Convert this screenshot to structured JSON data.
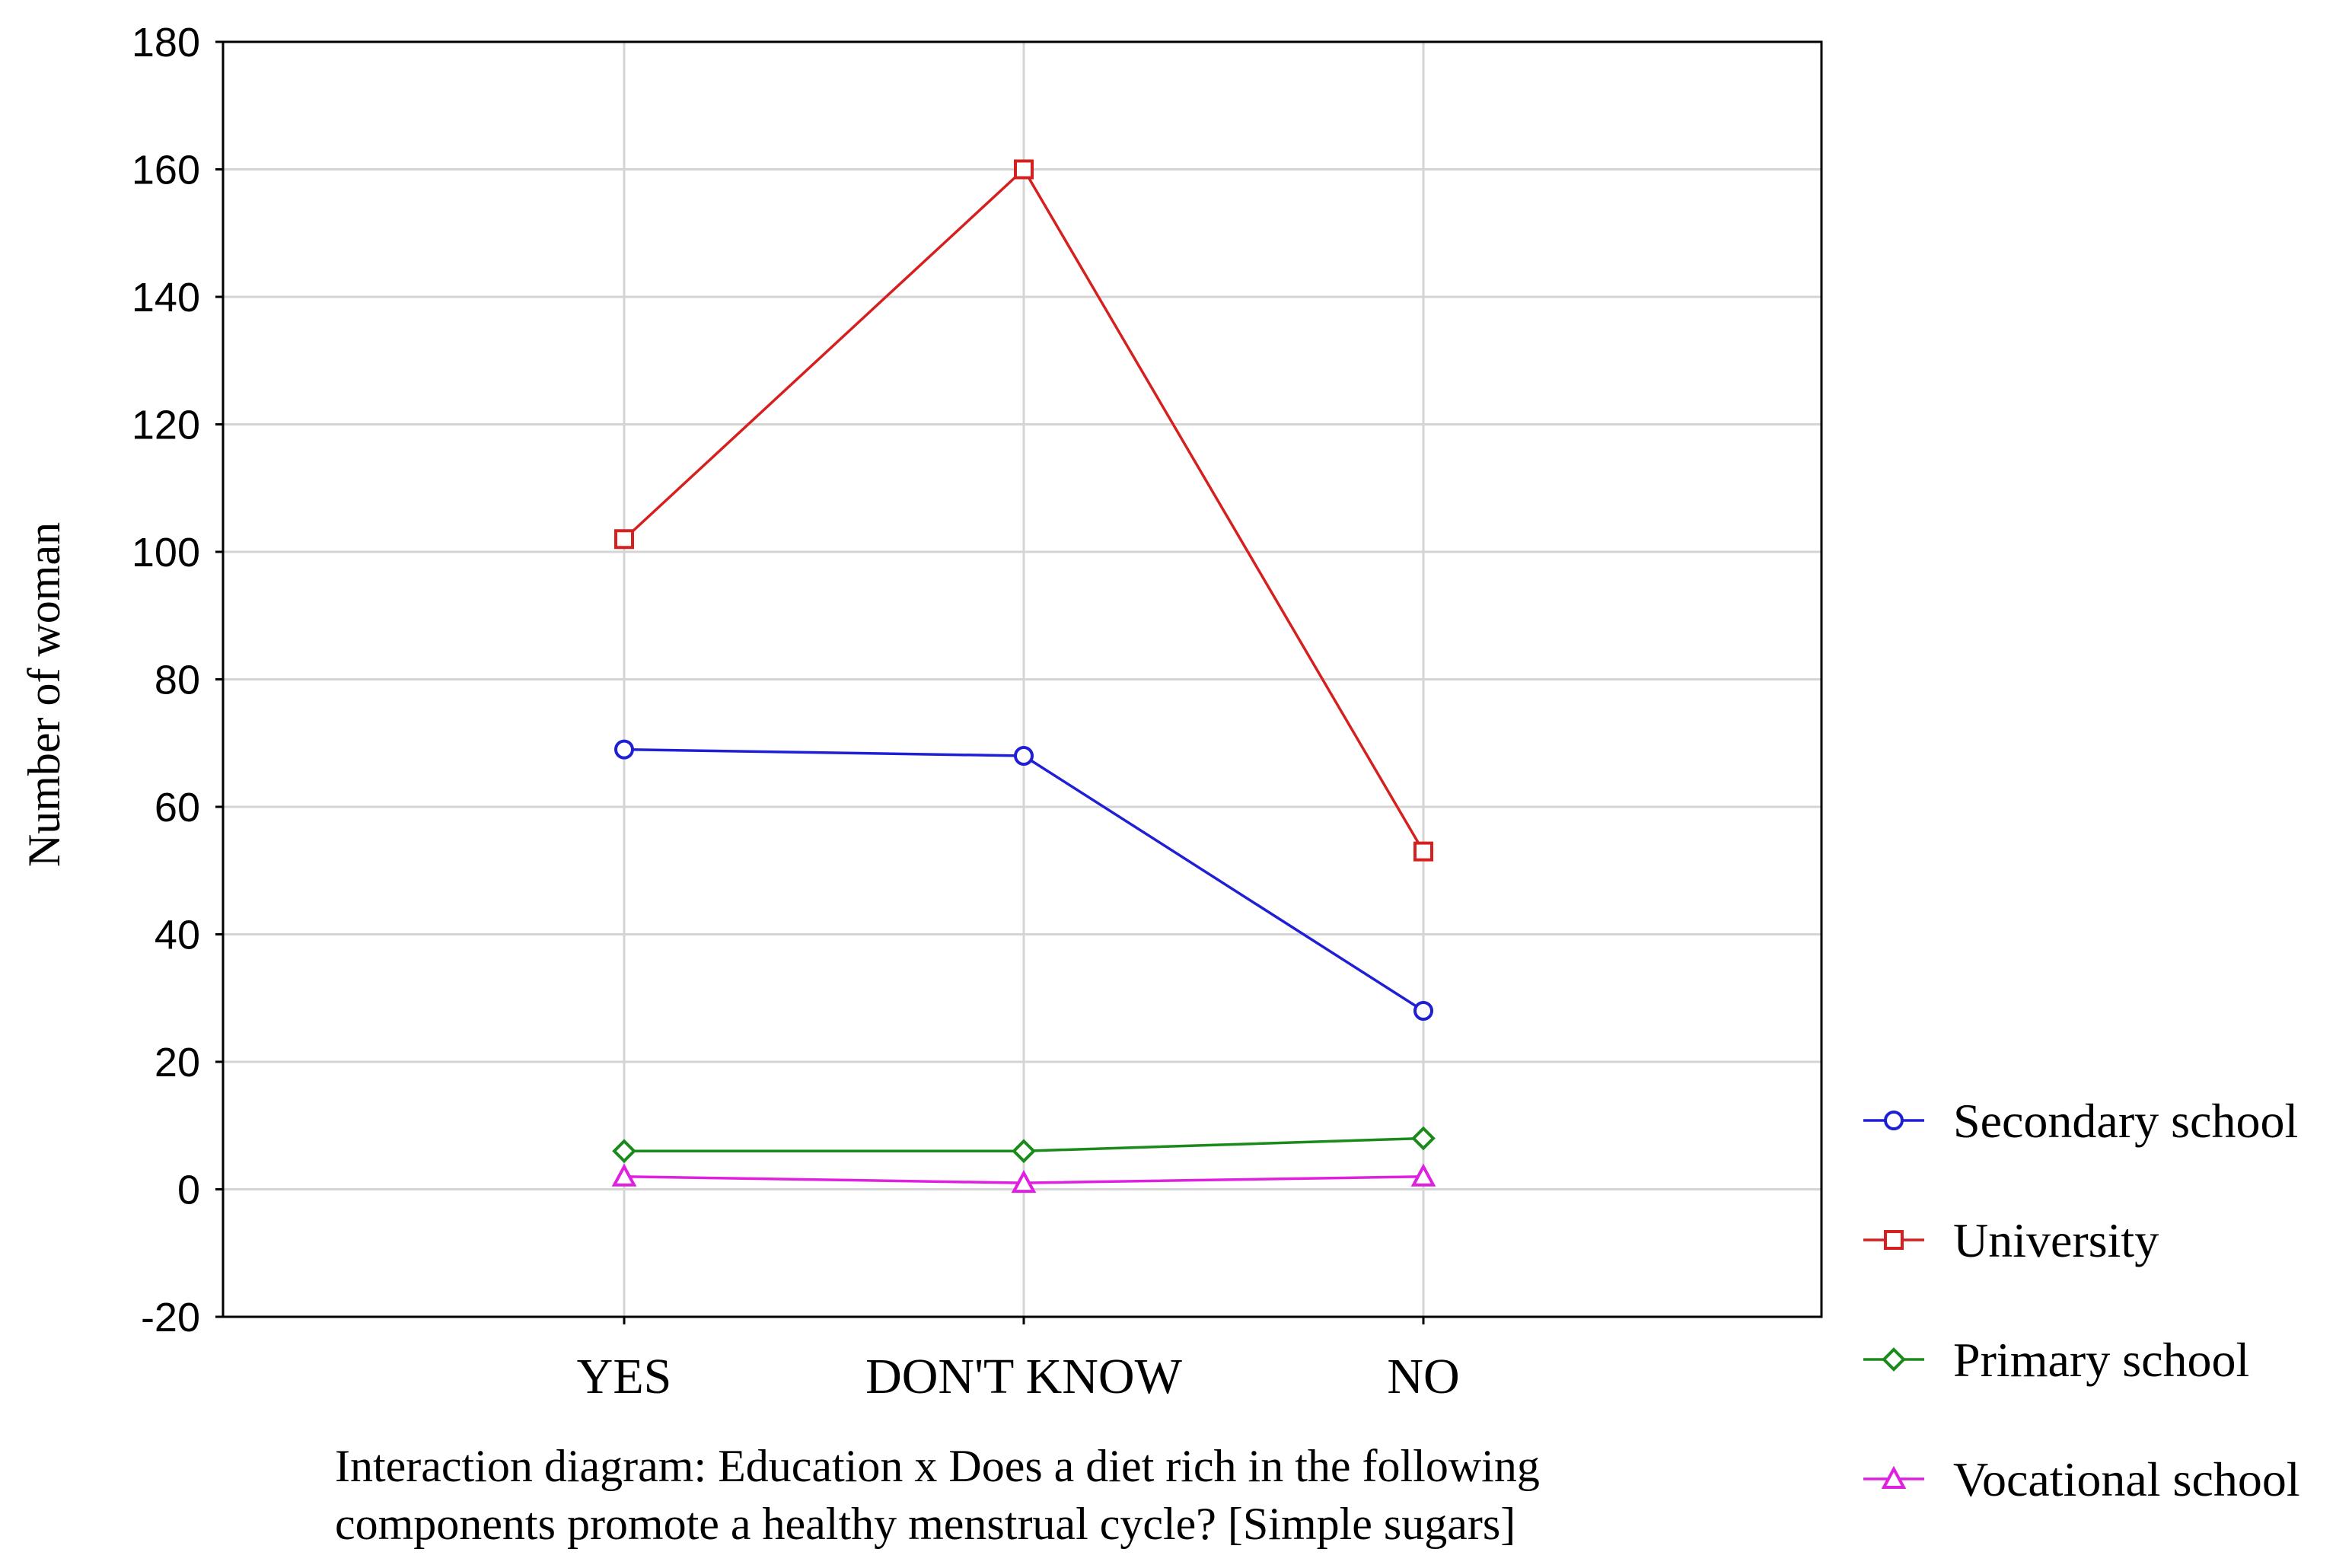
{
  "chart_data": {
    "type": "line",
    "categories": [
      "YES",
      "DON'T KNOW",
      "NO"
    ],
    "series": [
      {
        "name": "Secondary school",
        "color": "#1f1fd6",
        "marker": "circle",
        "values": [
          69,
          68,
          28
        ]
      },
      {
        "name": "University",
        "color": "#d62020",
        "marker": "square",
        "values": [
          102,
          160,
          53
        ]
      },
      {
        "name": "Primary school",
        "color": "#1a8a1a",
        "marker": "diamond",
        "values": [
          6,
          6,
          8
        ]
      },
      {
        "name": "Vocational school",
        "color": "#e020e0",
        "marker": "triangle",
        "values": [
          2,
          1,
          2
        ]
      }
    ],
    "ylabel": "Number of woman",
    "xlabel_lines": [
      "Interaction diagram: Education x Does a diet rich in the following",
      "components promote a healthy menstrual cycle? [Simple sugars]"
    ],
    "ylim": [
      -20,
      180
    ],
    "yticks": [
      -20,
      0,
      20,
      40,
      60,
      80,
      100,
      120,
      140,
      160,
      180
    ],
    "grid": true,
    "legend_position": "bottom-right"
  }
}
